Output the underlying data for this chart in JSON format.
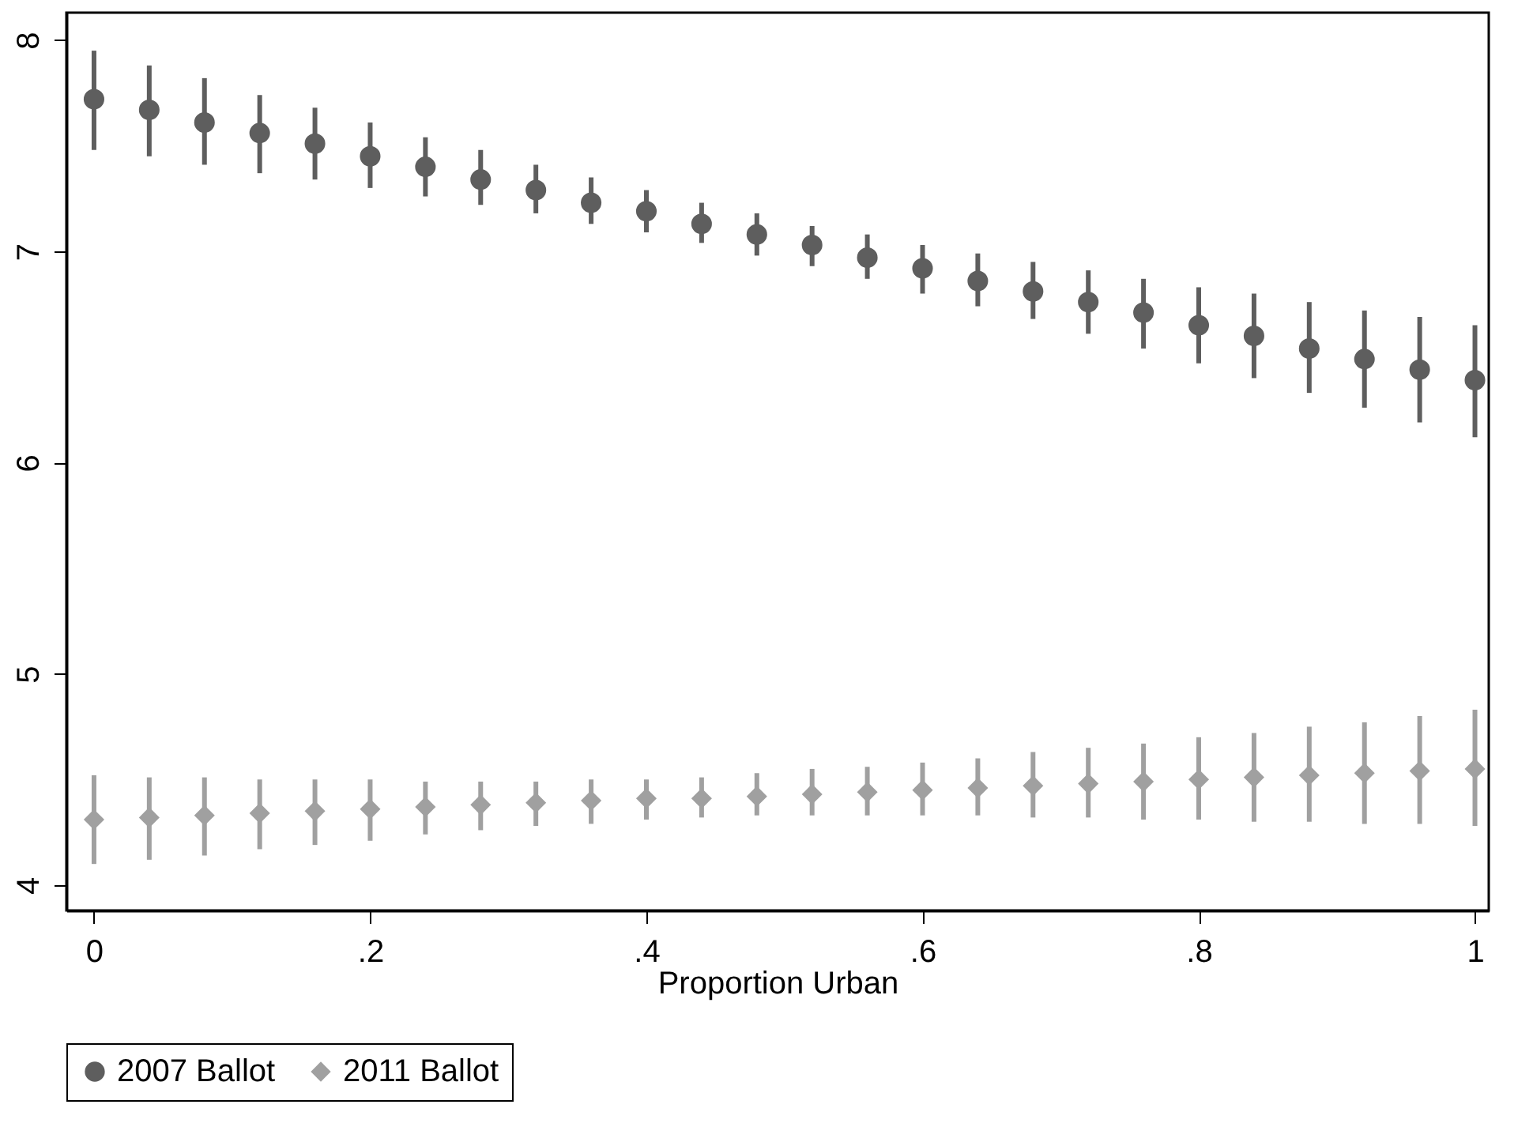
{
  "chart_data": {
    "type": "scatter",
    "xlabel": "Proportion Urban",
    "x": [
      0,
      0.04,
      0.08,
      0.12,
      0.16,
      0.2,
      0.24,
      0.28,
      0.32,
      0.36,
      0.4,
      0.44,
      0.48,
      0.52,
      0.56,
      0.6,
      0.64,
      0.68,
      0.72,
      0.76,
      0.8,
      0.84,
      0.88,
      0.92,
      0.96,
      1
    ],
    "series": [
      {
        "name": "2007 Ballot",
        "color": "#5e5e5e",
        "marker": "circle",
        "values": [
          7.72,
          7.67,
          7.61,
          7.56,
          7.51,
          7.45,
          7.4,
          7.34,
          7.29,
          7.23,
          7.19,
          7.13,
          7.08,
          7.03,
          6.97,
          6.92,
          6.86,
          6.81,
          6.76,
          6.71,
          6.65,
          6.6,
          6.54,
          6.49,
          6.44,
          6.39
        ],
        "errors": [
          [
            7.48,
            7.95
          ],
          [
            7.45,
            7.88
          ],
          [
            7.41,
            7.82
          ],
          [
            7.37,
            7.74
          ],
          [
            7.34,
            7.68
          ],
          [
            7.3,
            7.61
          ],
          [
            7.26,
            7.54
          ],
          [
            7.22,
            7.48
          ],
          [
            7.18,
            7.41
          ],
          [
            7.13,
            7.35
          ],
          [
            7.09,
            7.29
          ],
          [
            7.04,
            7.23
          ],
          [
            6.98,
            7.18
          ],
          [
            6.93,
            7.12
          ],
          [
            6.87,
            7.08
          ],
          [
            6.8,
            7.03
          ],
          [
            6.74,
            6.99
          ],
          [
            6.68,
            6.95
          ],
          [
            6.61,
            6.91
          ],
          [
            6.54,
            6.87
          ],
          [
            6.47,
            6.83
          ],
          [
            6.4,
            6.8
          ],
          [
            6.33,
            6.76
          ],
          [
            6.26,
            6.72
          ],
          [
            6.19,
            6.69
          ],
          [
            6.12,
            6.65
          ]
        ]
      },
      {
        "name": "2011 Ballot",
        "color": "#a0a0a0",
        "marker": "diamond",
        "values": [
          4.31,
          4.32,
          4.33,
          4.34,
          4.35,
          4.36,
          4.37,
          4.38,
          4.39,
          4.4,
          4.41,
          4.41,
          4.42,
          4.43,
          4.44,
          4.45,
          4.46,
          4.47,
          4.48,
          4.49,
          4.5,
          4.51,
          4.52,
          4.53,
          4.54,
          4.55
        ],
        "errors": [
          [
            4.1,
            4.52
          ],
          [
            4.12,
            4.51
          ],
          [
            4.14,
            4.51
          ],
          [
            4.17,
            4.5
          ],
          [
            4.19,
            4.5
          ],
          [
            4.21,
            4.5
          ],
          [
            4.24,
            4.49
          ],
          [
            4.26,
            4.49
          ],
          [
            4.28,
            4.49
          ],
          [
            4.29,
            4.5
          ],
          [
            4.31,
            4.5
          ],
          [
            4.32,
            4.51
          ],
          [
            4.33,
            4.53
          ],
          [
            4.33,
            4.55
          ],
          [
            4.33,
            4.56
          ],
          [
            4.33,
            4.58
          ],
          [
            4.33,
            4.6
          ],
          [
            4.32,
            4.63
          ],
          [
            4.32,
            4.65
          ],
          [
            4.31,
            4.67
          ],
          [
            4.31,
            4.7
          ],
          [
            4.3,
            4.72
          ],
          [
            4.3,
            4.75
          ],
          [
            4.29,
            4.77
          ],
          [
            4.29,
            4.8
          ],
          [
            4.28,
            4.83
          ]
        ]
      }
    ],
    "xlim": [
      -0.02,
      1.01
    ],
    "ylim": [
      3.88,
      8.13
    ],
    "xticks": [
      0,
      {
        "value": 0.2,
        "label": ".2"
      },
      {
        "value": 0.4,
        "label": ".4"
      },
      {
        "value": 0.6,
        "label": ".6"
      },
      {
        "value": 0.8,
        "label": ".8"
      },
      1
    ],
    "yticks": [
      4,
      5,
      6,
      7,
      8
    ],
    "grid": false,
    "legend": "bottom"
  }
}
